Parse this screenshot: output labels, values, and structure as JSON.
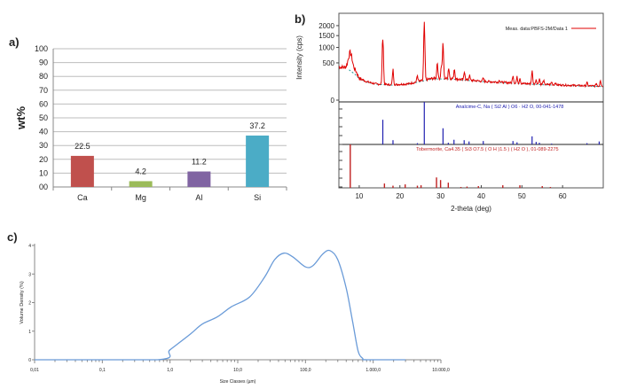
{
  "panel_labels": [
    "a)",
    "b)",
    "c)"
  ],
  "chart_data": [
    {
      "panel": "a)",
      "type": "bar",
      "ylabel": "wt%",
      "categories": [
        "Ca",
        "Mg",
        "Al",
        "Si"
      ],
      "values": [
        22.5,
        4.2,
        11.2,
        37.2
      ],
      "value_labels": [
        "22.5",
        "4.2",
        "11.2",
        "37.2"
      ],
      "colors": [
        "#c0504d",
        "#9bbb59",
        "#8064a2",
        "#4bacc6"
      ],
      "ylim": [
        0,
        100
      ],
      "yticks": [
        "00",
        "10",
        "20",
        "30",
        "40",
        "50",
        "60",
        "70",
        "80",
        "90",
        "100"
      ],
      "grid": true
    },
    {
      "panel": "b)",
      "type": "line",
      "xlabel": "2-theta (deg)",
      "ylabel": "Intensity (cps)",
      "xlim": [
        5,
        70
      ],
      "xticks": [
        "10",
        "20",
        "30",
        "40",
        "50",
        "60"
      ],
      "yscale": "sqrt",
      "yticks": [
        "0",
        "500",
        "1000",
        "1500",
        "2000"
      ],
      "legend": {
        "label": "Meas. data:PBFS-2M/Data 1",
        "color": "#e00000",
        "placement": "top-right"
      },
      "background": [
        [
          5,
          400
        ],
        [
          7,
          380
        ],
        [
          9,
          250
        ],
        [
          10,
          170
        ],
        [
          12,
          120
        ],
        [
          14,
          95
        ],
        [
          18,
          85
        ],
        [
          22,
          95
        ],
        [
          25,
          130
        ],
        [
          28,
          170
        ],
        [
          32,
          170
        ],
        [
          36,
          150
        ],
        [
          40,
          130
        ],
        [
          45,
          115
        ],
        [
          50,
          100
        ],
        [
          55,
          90
        ],
        [
          60,
          82
        ],
        [
          65,
          75
        ],
        [
          70,
          70
        ]
      ],
      "peaks": [
        [
          7.8,
          800
        ],
        [
          9.0,
          320
        ],
        [
          15.8,
          1500
        ],
        [
          18.3,
          330
        ],
        [
          24.3,
          220
        ],
        [
          26.0,
          2000
        ],
        [
          29.2,
          520
        ],
        [
          30.2,
          430
        ],
        [
          30.6,
          1100
        ],
        [
          32.0,
          380
        ],
        [
          33.4,
          360
        ],
        [
          35.9,
          300
        ],
        [
          37.1,
          220
        ],
        [
          40.5,
          170
        ],
        [
          44.5,
          150
        ],
        [
          47.8,
          230
        ],
        [
          48.8,
          190
        ],
        [
          49.5,
          180
        ],
        [
          52.5,
          300
        ],
        [
          53.5,
          160
        ],
        [
          54.3,
          170
        ],
        [
          55.3,
          140
        ],
        [
          57.3,
          120
        ],
        [
          58.2,
          110
        ],
        [
          66.0,
          110
        ],
        [
          68.3,
          100
        ],
        [
          69.3,
          150
        ]
      ],
      "reference_phases": [
        {
          "label": "Analcime-C, Na ( Si2 Al ) O6 · H2 O, 00-041-1478",
          "color": "#2020b0",
          "sticks": [
            [
              15.8,
              0.58
            ],
            [
              18.3,
              0.1
            ],
            [
              24.3,
              0.03
            ],
            [
              26.0,
              1.0
            ],
            [
              30.6,
              0.38
            ],
            [
              31.9,
              0.04
            ],
            [
              33.3,
              0.11
            ],
            [
              35.8,
              0.1
            ],
            [
              37.0,
              0.07
            ],
            [
              40.5,
              0.08
            ],
            [
              47.8,
              0.08
            ],
            [
              48.8,
              0.05
            ],
            [
              52.5,
              0.19
            ],
            [
              53.5,
              0.06
            ],
            [
              54.3,
              0.04
            ],
            [
              57.3,
              0.02
            ],
            [
              66.0,
              0.03
            ],
            [
              69.0,
              0.07
            ]
          ]
        },
        {
          "label": "Tobermorite, Ca4.35 ( Si3 O7.5 ( O H )1.5 ) ( H2 O ), 01-089-2275",
          "color": "#c02020",
          "sticks": [
            [
              7.8,
              1.0
            ],
            [
              16.2,
              0.1
            ],
            [
              18.3,
              0.05
            ],
            [
              21.3,
              0.08
            ],
            [
              24.3,
              0.05
            ],
            [
              25.2,
              0.06
            ],
            [
              29.0,
              0.24
            ],
            [
              30.0,
              0.18
            ],
            [
              31.9,
              0.12
            ],
            [
              35.0,
              0.02
            ],
            [
              36.5,
              0.03
            ],
            [
              39.3,
              0.04
            ],
            [
              45.3,
              0.06
            ],
            [
              49.5,
              0.06
            ],
            [
              55.0,
              0.04
            ],
            [
              57.0,
              0.02
            ]
          ]
        }
      ]
    },
    {
      "panel": "c)",
      "type": "line",
      "xlabel": "Size Classes (µm)",
      "ylabel": "Volume Density (%)",
      "xscale": "log",
      "xlim": [
        0.01,
        10000
      ],
      "xticks": [
        "0,01",
        "0,1",
        "1,0",
        "10,0",
        "100,0",
        "1.000,0",
        "10.000,0"
      ],
      "ylim": [
        0,
        4
      ],
      "yticks": [
        "0",
        "1",
        "2",
        "3",
        "4"
      ],
      "color": "#6a9bd8",
      "points": [
        [
          0.01,
          0
        ],
        [
          0.65,
          0
        ],
        [
          1.0,
          0.35
        ],
        [
          2.0,
          0.9
        ],
        [
          3.0,
          1.25
        ],
        [
          5.0,
          1.5
        ],
        [
          8.0,
          1.85
        ],
        [
          15,
          2.2
        ],
        [
          25,
          2.9
        ],
        [
          35,
          3.5
        ],
        [
          48,
          3.73
        ],
        [
          65,
          3.6
        ],
        [
          100,
          3.25
        ],
        [
          130,
          3.3
        ],
        [
          180,
          3.7
        ],
        [
          230,
          3.82
        ],
        [
          300,
          3.5
        ],
        [
          400,
          2.5
        ],
        [
          500,
          1.3
        ],
        [
          600,
          0.3
        ],
        [
          700,
          0.05
        ],
        [
          800,
          0
        ],
        [
          3000,
          0
        ]
      ]
    }
  ]
}
